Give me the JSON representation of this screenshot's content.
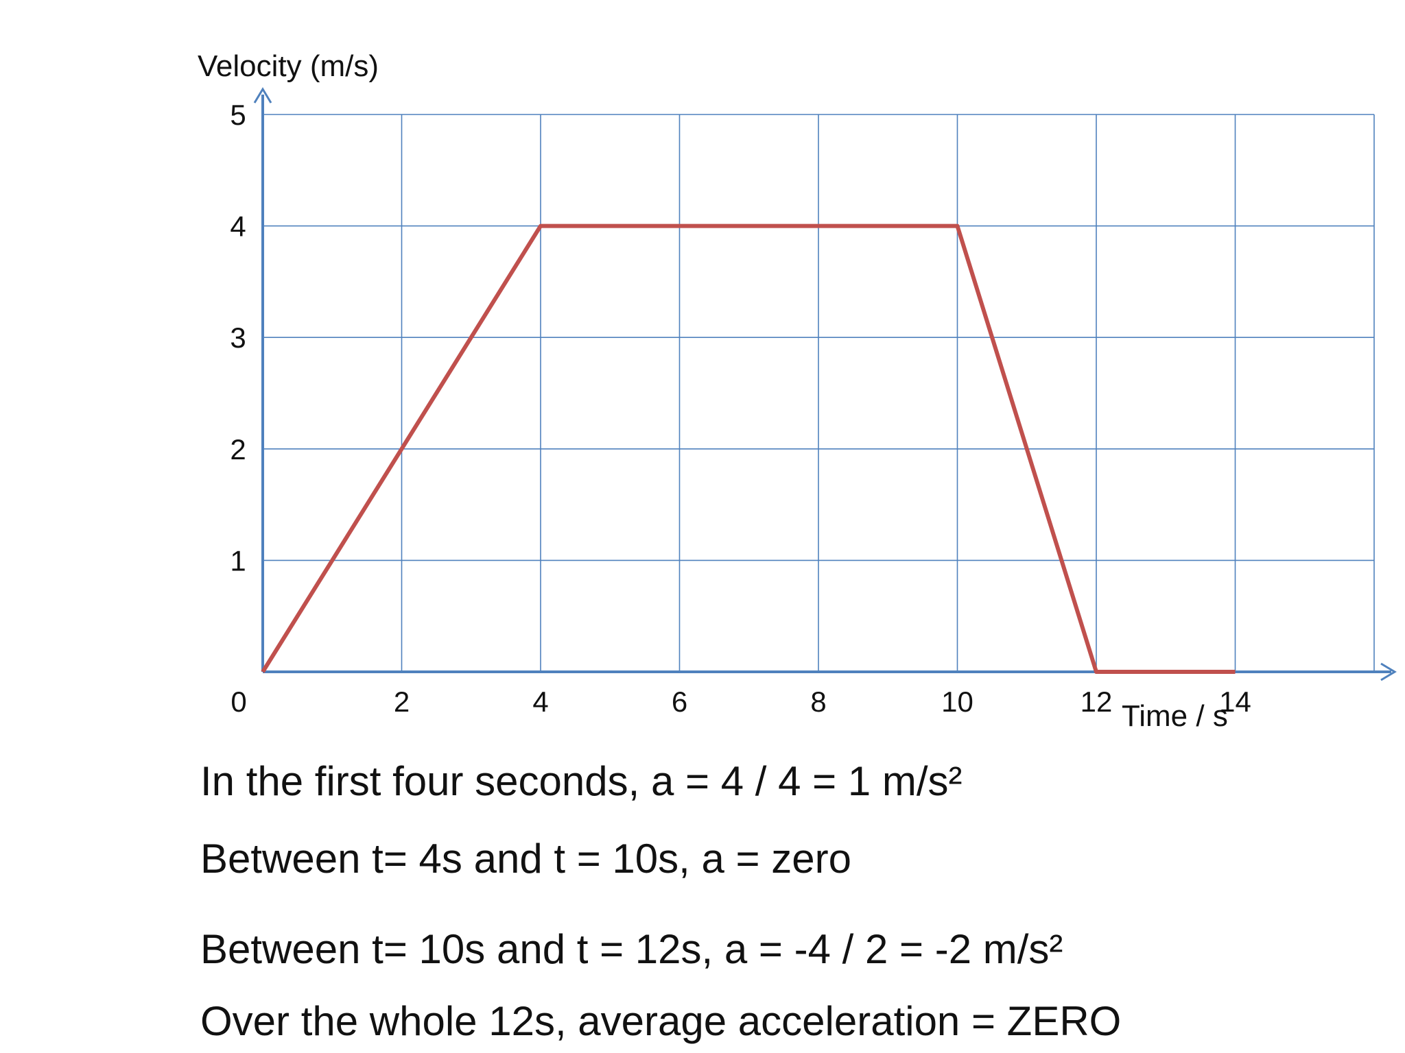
{
  "chart_data": {
    "type": "line",
    "ylabel": "Velocity (m/s)",
    "xlabel": "Time / s",
    "xlim": [
      0,
      16
    ],
    "ylim": [
      0,
      5
    ],
    "x_ticks": [
      0,
      2,
      4,
      6,
      8,
      10,
      12,
      14
    ],
    "y_ticks": [
      1,
      2,
      3,
      4,
      5
    ],
    "grid": true,
    "series": [
      {
        "x": [
          0,
          4,
          10,
          12,
          14
        ],
        "y": [
          0,
          4,
          4,
          0,
          0
        ],
        "color": "#c0504d"
      }
    ],
    "axis_color": "#4f81bd",
    "grid_color": "#4f81bd"
  },
  "notes": [
    "In the first four seconds, a  = 4 / 4 = 1 m/s²",
    "Between t= 4s and t = 10s, a  = zero",
    "Between t= 10s and t = 12s, a  = -4 / 2 = -2 m/s²",
    "Over the whole 12s, average acceleration = ZERO"
  ]
}
